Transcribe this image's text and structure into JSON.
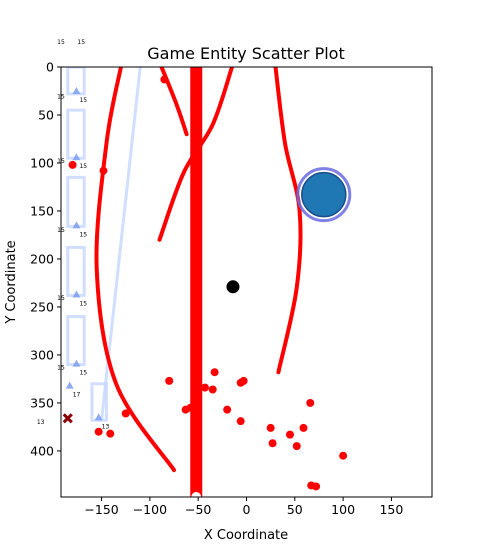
{
  "chart_data": {
    "type": "scatter",
    "title": "Game Entity Scatter Plot",
    "xlabel": "X Coordinate",
    "ylabel": "Y Coordinate",
    "xlim": [
      -192,
      192
    ],
    "ylim": [
      448,
      0
    ],
    "y_inverted": true,
    "grid": false,
    "x_ticks": [
      -150,
      -100,
      -50,
      0,
      50,
      100,
      150
    ],
    "y_ticks": [
      0,
      50,
      100,
      150,
      200,
      250,
      300,
      350,
      400
    ],
    "colors": {
      "enemy": "#ff0000",
      "wall": "#ff0000",
      "player": "#1f77b4",
      "player_ring": "#6b6be0",
      "track": "#c5d6ff",
      "waypoint": "#7b9ef0",
      "marker_x": "#8b0000",
      "black_dot": "#000000"
    },
    "series": [
      {
        "name": "",
        "type": "scatter",
        "points": [
          [
            -85,
            13
          ],
          [
            -180,
            102
          ],
          [
            -148,
            108
          ],
          [
            -80,
            327
          ],
          [
            -63,
            357
          ],
          [
            -58,
            355
          ],
          [
            -43,
            334
          ],
          [
            -35,
            336
          ],
          [
            -33,
            318
          ],
          [
            -20,
            357
          ],
          [
            -6,
            329
          ],
          [
            -3,
            327
          ],
          [
            -6,
            369
          ],
          [
            -125,
            361
          ],
          [
            -153,
            380
          ],
          [
            -141,
            382
          ],
          [
            25,
            376
          ],
          [
            27,
            392
          ],
          [
            45,
            383
          ],
          [
            52,
            395
          ],
          [
            59,
            376
          ],
          [
            66,
            350
          ],
          [
            67,
            436
          ],
          [
            72,
            437
          ],
          [
            100,
            405
          ]
        ]
      }
    ],
    "walls": [
      {
        "kind": "vertical-bar",
        "x": -52,
        "y_range": [
          0,
          448
        ]
      },
      {
        "kind": "curve",
        "points": [
          [
            -130,
            0
          ],
          [
            -145,
            80
          ],
          [
            -155,
            210
          ],
          [
            -135,
            330
          ],
          [
            -75,
            420
          ]
        ]
      },
      {
        "kind": "curve",
        "points": [
          [
            -88,
            0
          ],
          [
            -72,
            40
          ],
          [
            -62,
            70
          ]
        ]
      },
      {
        "kind": "curve",
        "points": [
          [
            -15,
            0
          ],
          [
            -35,
            60
          ],
          [
            -65,
            110
          ],
          [
            -90,
            180
          ]
        ]
      },
      {
        "kind": "curve",
        "points": [
          [
            30,
            0
          ],
          [
            40,
            80
          ],
          [
            55,
            150
          ],
          [
            52,
            230
          ],
          [
            33,
            318
          ]
        ]
      }
    ],
    "player": {
      "x": 80,
      "y": 133
    },
    "special_point": {
      "x": -14,
      "y": 229
    },
    "track": {
      "lanes": [
        {
          "x_range": [
            -185,
            -168
          ],
          "y_range": [
            0,
            28
          ]
        },
        {
          "x_range": [
            -185,
            -168
          ],
          "y_range": [
            45,
            95
          ]
        },
        {
          "x_range": [
            -185,
            -168
          ],
          "y_range": [
            115,
            166
          ]
        },
        {
          "x_range": [
            -185,
            -168
          ],
          "y_range": [
            188,
            238
          ]
        },
        {
          "x_range": [
            -185,
            -168
          ],
          "y_range": [
            260,
            310
          ]
        },
        {
          "x_range": [
            -160,
            -145
          ],
          "y_range": [
            330,
            368
          ]
        }
      ],
      "diagonal": [
        [
          -110,
          0
        ],
        [
          -150,
          368
        ]
      ],
      "waypoints": [
        {
          "x": -176,
          "y": 25,
          "label": "15"
        },
        {
          "x": -176,
          "y": 94,
          "label": "15"
        },
        {
          "x": -176,
          "y": 165,
          "label": "15"
        },
        {
          "x": -176,
          "y": 237,
          "label": "15"
        },
        {
          "x": -176,
          "y": 309,
          "label": "15"
        },
        {
          "x": -183,
          "y": 332,
          "label": "17"
        },
        {
          "x": -153,
          "y": 365,
          "label": "13"
        }
      ],
      "corner_labels": [
        {
          "x": -196,
          "y": -24,
          "label": "15"
        },
        {
          "x": -175,
          "y": -24,
          "label": "15"
        },
        {
          "x": -196,
          "y": 33,
          "label": "15"
        },
        {
          "x": -196,
          "y": 100,
          "label": "15"
        },
        {
          "x": -196,
          "y": 172,
          "label": "15"
        },
        {
          "x": -196,
          "y": 243,
          "label": "15"
        },
        {
          "x": -196,
          "y": 315,
          "label": "15"
        },
        {
          "x": -217,
          "y": 372,
          "label": "13"
        }
      ]
    },
    "x_marker": {
      "x": -185,
      "y": 366
    }
  }
}
